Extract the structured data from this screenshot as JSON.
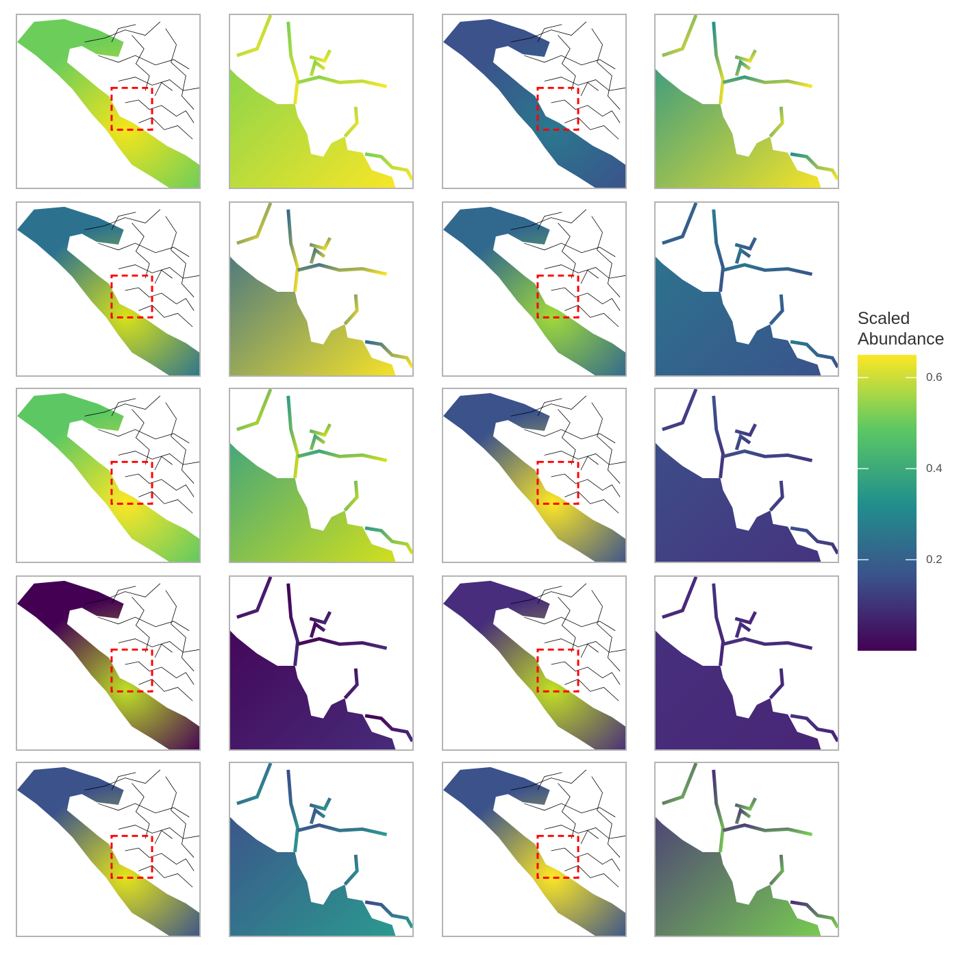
{
  "legend": {
    "title_line1": "Scaled",
    "title_line2": "Abundance",
    "ticks": [
      {
        "label": "0.6",
        "value": 0.6
      },
      {
        "label": "0.4",
        "value": 0.4
      },
      {
        "label": "0.2",
        "value": 0.2
      }
    ],
    "range": [
      0.0,
      0.65
    ],
    "palette": [
      "#440154",
      "#3b528b",
      "#21908c",
      "#5dc863",
      "#fde725"
    ]
  },
  "map_rows": [
    {
      "left": {
        "overview_color": "#6ccd5a",
        "overview_hot": "#f5e51b",
        "zoom_color": "#7ad151",
        "zoom_hot": "#fde725"
      },
      "right": {
        "overview_color": "#3b528b",
        "overview_hot": "#2a788e",
        "zoom_color": "#21908c",
        "zoom_hot": "#fde725"
      }
    },
    {
      "left": {
        "overview_color": "#2c728e",
        "overview_hot": "#d8e219",
        "zoom_color": "#31688e",
        "zoom_hot": "#fde725"
      },
      "right": {
        "overview_color": "#31688e",
        "overview_hot": "#a0da39",
        "zoom_color": "#2a788e",
        "zoom_hot": "#3b528b"
      }
    },
    {
      "left": {
        "overview_color": "#5dc863",
        "overview_hot": "#fde725",
        "zoom_color": "#2c9c8a",
        "zoom_hot": "#d8e219"
      },
      "right": {
        "overview_color": "#3b528b",
        "overview_hot": "#fde725",
        "zoom_color": "#3b528b",
        "zoom_hot": "#46327e"
      }
    },
    {
      "left": {
        "overview_color": "#440154",
        "overview_hot": "#bddf26",
        "zoom_color": "#440154",
        "zoom_hot": "#472d7b"
      },
      "right": {
        "overview_color": "#472d7b",
        "overview_hot": "#c2df23",
        "zoom_color": "#46327e",
        "zoom_hot": "#482576"
      }
    },
    {
      "left": {
        "overview_color": "#3b528b",
        "overview_hot": "#e5e419",
        "zoom_color": "#3e4a89",
        "zoom_hot": "#2a9d8f"
      },
      "right": {
        "overview_color": "#3b528b",
        "overview_hot": "#fde725",
        "zoom_color": "#472d7b",
        "zoom_hot": "#7ad151"
      }
    }
  ]
}
